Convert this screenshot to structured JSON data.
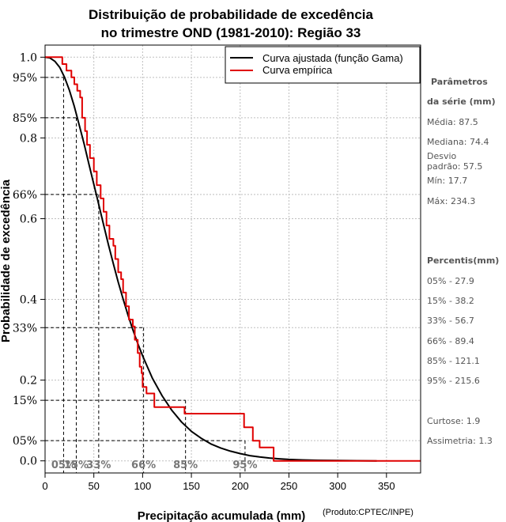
{
  "chart_data": {
    "type": "line",
    "title_line1": "Distribuição de probabilidade de excedência",
    "title_line2": "no trimestre OND (1981-2010): Região 33",
    "xlabel": "Precipitação acumulada (mm)",
    "ylabel": "Probabilidade de excedência",
    "credit": "(Produto:CPTEC/INPE)",
    "xlim": [
      0,
      385
    ],
    "ylim": [
      -0.03,
      1.03
    ],
    "x_ticks": [
      0,
      50,
      100,
      150,
      200,
      250,
      300,
      350
    ],
    "y_ticks": [
      {
        "value": 1.0,
        "label": "1.0"
      },
      {
        "value": 0.95,
        "label": "95%"
      },
      {
        "value": 0.85,
        "label": "85%"
      },
      {
        "value": 0.8,
        "label": "0.8"
      },
      {
        "value": 0.66,
        "label": "66%"
      },
      {
        "value": 0.6,
        "label": "0.6"
      },
      {
        "value": 0.4,
        "label": "0.4"
      },
      {
        "value": 0.33,
        "label": "33%"
      },
      {
        "value": 0.2,
        "label": "0.2"
      },
      {
        "value": 0.15,
        "label": "15%"
      },
      {
        "value": 0.05,
        "label": "05%"
      },
      {
        "value": 0.0,
        "label": "0.0"
      }
    ],
    "legend": {
      "position": "top-right",
      "entries": [
        "Curva ajustada (função Gama)",
        "Curva empírica"
      ]
    },
    "colors": {
      "fitted": "#000000",
      "empirical": "#e00000",
      "grid": "#bfbfbf",
      "guide": "#000000"
    },
    "series": [
      {
        "name": "Curva ajustada (função Gama)",
        "x": [
          0,
          5,
          10,
          15,
          20,
          25,
          30,
          35,
          40,
          45,
          50,
          55,
          60,
          65,
          70,
          75,
          80,
          85,
          90,
          95,
          100,
          110,
          120,
          130,
          140,
          150,
          160,
          170,
          180,
          190,
          200,
          210,
          220,
          230,
          240,
          250,
          260,
          280,
          300,
          320,
          340
        ],
        "y": [
          1.0,
          0.998,
          0.99,
          0.975,
          0.95,
          0.918,
          0.878,
          0.832,
          0.785,
          0.735,
          0.685,
          0.635,
          0.585,
          0.535,
          0.488,
          0.443,
          0.401,
          0.361,
          0.325,
          0.291,
          0.26,
          0.205,
          0.161,
          0.125,
          0.096,
          0.073,
          0.056,
          0.042,
          0.032,
          0.024,
          0.018,
          0.013,
          0.0095,
          0.007,
          0.005,
          0.0036,
          0.0026,
          0.0013,
          0.0007,
          0.0003,
          0.0
        ]
      },
      {
        "name": "Curva empírica",
        "x": [
          0,
          17.7,
          17.7,
          22,
          22,
          27,
          27,
          30,
          30,
          33,
          33,
          36,
          36,
          38,
          38,
          41,
          41,
          43,
          43,
          46,
          46,
          50,
          50,
          53,
          53,
          57,
          57,
          60,
          60,
          63,
          63,
          66,
          66,
          70,
          70,
          72,
          72,
          75,
          75,
          78,
          78,
          80,
          80,
          83,
          83,
          86,
          86,
          90,
          90,
          92,
          92,
          95,
          95,
          97,
          97,
          99,
          99,
          100,
          100,
          104,
          104,
          112,
          112,
          143,
          143,
          204,
          204,
          213,
          213,
          220,
          220,
          234.3,
          234.3,
          385
        ],
        "y": [
          1.0,
          1.0,
          0.983,
          0.983,
          0.967,
          0.967,
          0.95,
          0.95,
          0.933,
          0.933,
          0.917,
          0.917,
          0.9,
          0.9,
          0.85,
          0.85,
          0.817,
          0.817,
          0.783,
          0.783,
          0.75,
          0.75,
          0.717,
          0.717,
          0.683,
          0.683,
          0.65,
          0.65,
          0.617,
          0.617,
          0.583,
          0.583,
          0.55,
          0.55,
          0.533,
          0.533,
          0.5,
          0.5,
          0.467,
          0.467,
          0.45,
          0.45,
          0.417,
          0.417,
          0.383,
          0.383,
          0.35,
          0.35,
          0.333,
          0.333,
          0.3,
          0.3,
          0.267,
          0.267,
          0.233,
          0.233,
          0.217,
          0.217,
          0.183,
          0.183,
          0.167,
          0.167,
          0.133,
          0.133,
          0.117,
          0.117,
          0.083,
          0.083,
          0.05,
          0.05,
          0.033,
          0.033,
          0.0,
          0.0
        ]
      }
    ],
    "percentile_guides": [
      {
        "label": "05%",
        "x": 19,
        "y": 0.95
      },
      {
        "label": "15%",
        "x": 32,
        "y": 0.85
      },
      {
        "label": "33%",
        "x": 55,
        "y": 0.66
      },
      {
        "label": "66%",
        "x": 101,
        "y": 0.33
      },
      {
        "label": "85%",
        "x": 144,
        "y": 0.15
      },
      {
        "label": "95%",
        "x": 205,
        "y": 0.05
      }
    ]
  },
  "sidebar": {
    "params_heading_1": "Parâmetros",
    "params_heading_2": "da série (mm)",
    "media": "Média: 87.5",
    "mediana": "Mediana: 74.4",
    "desvio_1": "Desvio",
    "desvio_2": "padrão: 57.5",
    "min": "Mín: 17.7",
    "max": "Máx: 234.3",
    "percentis_heading": "Percentis(mm)",
    "p05": "05% - 27.9",
    "p15": "15% - 38.2",
    "p33": "33% - 56.7",
    "p66": "66% - 89.4",
    "p85": "85% - 121.1",
    "p95": "95% - 215.6",
    "curtose": "Curtose: 1.9",
    "assimetria": "Assimetria: 1.3"
  }
}
